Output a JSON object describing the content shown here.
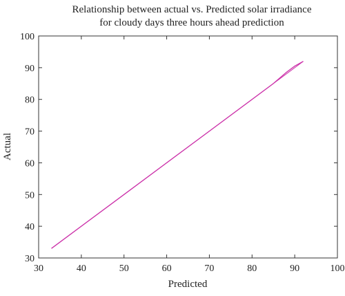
{
  "chart_data": {
    "type": "line",
    "title_lines": [
      "Relationship between actual vs. Predicted solar irradiance",
      "for cloudy days three hours ahead prediction"
    ],
    "xlabel": "Predicted",
    "ylabel": "Actual",
    "xlim": [
      30,
      100
    ],
    "ylim": [
      30,
      100
    ],
    "x_ticks": [
      "30",
      "40",
      "50",
      "60",
      "70",
      "80",
      "90",
      "100"
    ],
    "y_ticks": [
      "30",
      "40",
      "50",
      "60",
      "70",
      "80",
      "90",
      "100"
    ],
    "grid": false,
    "series": [
      {
        "color": "#cc33aa",
        "x": [
          33,
          50,
          70,
          85,
          88,
          90,
          92
        ],
        "y": [
          33,
          50,
          70,
          85,
          88.5,
          90.5,
          92
        ]
      }
    ]
  }
}
